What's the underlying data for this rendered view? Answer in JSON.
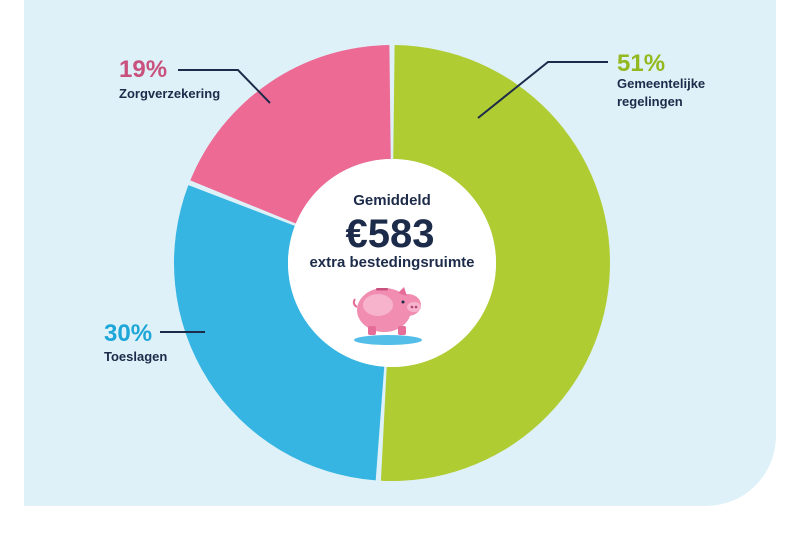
{
  "chart_data": {
    "type": "pie",
    "variant": "donut",
    "center": {
      "heading": "Gemiddeld",
      "amount": "€583",
      "caption": "extra bestedingsruimte"
    },
    "slices": [
      {
        "name_lines": [
          "Gemeentelijke",
          "regelingen"
        ],
        "value": 51,
        "label": "51%",
        "color": "#b0cc33"
      },
      {
        "name_lines": [
          "Toeslagen"
        ],
        "value": 30,
        "label": "30%",
        "color": "#36b5e3"
      },
      {
        "name_lines": [
          "Zorgverzekering"
        ],
        "value": 19,
        "label": "19%",
        "color": "#ec6a94"
      }
    ],
    "label_colors": {
      "51%": "#94b81f",
      "30%": "#1da6d8",
      "19%": "#c8527d"
    },
    "icon": "piggy-bank-icon"
  }
}
